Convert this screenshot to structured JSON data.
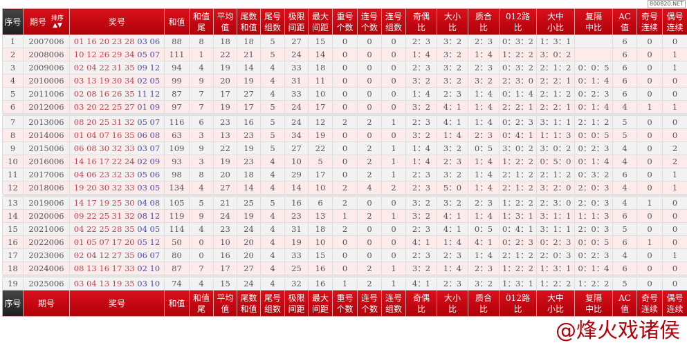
{
  "header": {
    "seq": "序号",
    "issue": "期号",
    "sort": "排序",
    "numbers": "奖号",
    "cols": [
      "和值",
      "和值尾",
      "平均值",
      "尾数和值",
      "尾号组数",
      "极限间距",
      "最大间距",
      "重号个数",
      "连号个数",
      "连号组数",
      "奇偶比",
      "大小比",
      "质合比",
      "012路比",
      "大中小比",
      "复隔中比",
      "AC值",
      "奇号连续",
      "偶号连续"
    ]
  },
  "badge": "800820.NET",
  "watermark": "@烽火戏诸侯",
  "colors": {
    "header": "#c8000a",
    "red_ball": "#c04650",
    "blue_ball": "#4a4aa8"
  },
  "groups": [
    6,
    6,
    6,
    1
  ],
  "rows": [
    [
      "1",
      "2007006",
      "01 16 20 23 28",
      "03 06",
      "88",
      "8",
      "18",
      "18",
      "5",
      "27",
      "15",
      "0",
      "0",
      "0",
      "2：3",
      "3：2",
      "2：3",
      "0：3：2",
      "1：3：1",
      "",
      "6",
      "0",
      "0"
    ],
    [
      "2",
      "2008006",
      "10 12 26 29 34",
      "05 07",
      "111",
      "1",
      "22",
      "21",
      "5",
      "24",
      "14",
      "0",
      "0",
      "0",
      "1：4",
      "3：2",
      "1：4",
      "1：2：2",
      "3：0：2",
      "",
      "6",
      "0",
      "1"
    ],
    [
      "3",
      "2009006",
      "02 04 22 31 35",
      "09 12",
      "94",
      "4",
      "19",
      "14",
      "4",
      "33",
      "18",
      "0",
      "0",
      "0",
      "2：3",
      "3：2",
      "2：3",
      "0：3：2",
      "2：1：2",
      "0：0：5",
      "6",
      "0",
      "1"
    ],
    [
      "4",
      "2010006",
      "03 13 19 30 34",
      "02 05",
      "99",
      "9",
      "20",
      "19",
      "4",
      "31",
      "11",
      "0",
      "0",
      "0",
      "3：2",
      "3：2",
      "3：2",
      "2：3：0",
      "2：2：1",
      "0：1：4",
      "6",
      "0",
      "0"
    ],
    [
      "5",
      "2011006",
      "02 08 16 26 35",
      "11 12",
      "87",
      "7",
      "17",
      "27",
      "4",
      "33",
      "10",
      "0",
      "0",
      "0",
      "1：4",
      "2：3",
      "1：4",
      "0：1：4",
      "2：1：2",
      "0：2：3",
      "6",
      "0",
      "0"
    ],
    [
      "6",
      "2012006",
      "03 20 22 25 27",
      "01 09",
      "97",
      "7",
      "19",
      "17",
      "5",
      "24",
      "17",
      "0",
      "0",
      "0",
      "3：2",
      "4：1",
      "1：4",
      "2：2：1",
      "2：2：1",
      "0：1：4",
      "4",
      "1",
      "1"
    ],
    [
      "7",
      "2013006",
      "08 20 25 31 32",
      "05 07",
      "116",
      "6",
      "23",
      "16",
      "5",
      "24",
      "12",
      "2",
      "2",
      "1",
      "2：3",
      "4：1",
      "1：4",
      "0：2：3",
      "3：1：1",
      "2：1：2",
      "5",
      "0",
      "0"
    ],
    [
      "8",
      "2014006",
      "01 04 07 16 35",
      "06 08",
      "63",
      "3",
      "13",
      "23",
      "5",
      "34",
      "19",
      "0",
      "0",
      "0",
      "3：2",
      "1：4",
      "2：3",
      "0：4：1",
      "1：1：3",
      "0：0：5",
      "5",
      "0",
      "0"
    ],
    [
      "9",
      "2015006",
      "06 08 30 32 33",
      "03 07",
      "109",
      "9",
      "22",
      "19",
      "5",
      "27",
      "22",
      "0",
      "2",
      "1",
      "1：4",
      "3：2",
      "0：5",
      "3：0：2",
      "3：0：2",
      "0：2：3",
      "4",
      "0",
      "2"
    ],
    [
      "10",
      "2016006",
      "14 16 17 22 24",
      "02 09",
      "93",
      "3",
      "19",
      "23",
      "4",
      "10",
      "5",
      "0",
      "2",
      "1",
      "1：4",
      "2：3",
      "1：4",
      "1：2：2",
      "0：5：0",
      "0：1：4",
      "4",
      "0",
      "2"
    ],
    [
      "11",
      "2017006",
      "04 06 23 32 33",
      "05 06",
      "98",
      "8",
      "20",
      "18",
      "4",
      "29",
      "17",
      "0",
      "2",
      "1",
      "2：3",
      "3：2",
      "1：4",
      "2：1：2",
      "2：1：2",
      "0：3：2",
      "6",
      "0",
      "1"
    ],
    [
      "12",
      "2018006",
      "19 20 30 32 33",
      "03 05",
      "134",
      "4",
      "27",
      "14",
      "4",
      "14",
      "10",
      "2",
      "4",
      "2",
      "2：3",
      "5：0",
      "1：4",
      "2：1：2",
      "3：2：0",
      "2：0：3",
      "4",
      "0",
      "1"
    ],
    [
      "13",
      "2019006",
      "14 17 19 25 30",
      "04 08",
      "105",
      "5",
      "21",
      "25",
      "5",
      "16",
      "6",
      "2",
      "0",
      "0",
      "3：2",
      "3：2",
      "2：3",
      "1：2：2",
      "2：3：0",
      "2：0：3",
      "4",
      "1",
      "0"
    ],
    [
      "14",
      "2020006",
      "09 22 25 31 32",
      "08 12",
      "119",
      "9",
      "24",
      "19",
      "4",
      "23",
      "13",
      "1",
      "2",
      "1",
      "3：2",
      "4：1",
      "1：4",
      "1：3：1",
      "3：1：1",
      "1：1：3",
      "6",
      "0",
      "0"
    ],
    [
      "15",
      "2021006",
      "04 22 25 28 35",
      "04 05",
      "114",
      "4",
      "23",
      "24",
      "4",
      "31",
      "18",
      "2",
      "0",
      "0",
      "2：3",
      "4：1",
      "0：5",
      "0：4：1",
      "3：1：1",
      "2：0：3",
      "5",
      "0",
      "0"
    ],
    [
      "16",
      "2022006",
      "01 05 07 17 20",
      "05 12",
      "50",
      "0",
      "10",
      "20",
      "4",
      "19",
      "10",
      "0",
      "0",
      "0",
      "4：1",
      "1：4",
      "4：1",
      "0：2：3",
      "0：2：3",
      "0：0：5",
      "6",
      "1",
      "0"
    ],
    [
      "17",
      "2023006",
      "02 04 12 27 35",
      "06 07",
      "80",
      "0",
      "16",
      "20",
      "4",
      "33",
      "15",
      "0",
      "0",
      "0",
      "2：3",
      "2：3",
      "1：4",
      "2：1：2",
      "2：0：3",
      "0：2：3",
      "4",
      "0",
      "1"
    ],
    [
      "18",
      "2024006",
      "08 13 16 17 33",
      "02 10",
      "87",
      "7",
      "17",
      "27",
      "4",
      "25",
      "16",
      "0",
      "2",
      "1",
      "3：2",
      "1：4",
      "2：3",
      "1：2：2",
      "1：3：1",
      "0：1：4",
      "6",
      "0",
      "0"
    ],
    [
      "19",
      "2025006",
      "03 04 13 19 35",
      "03 10",
      "74",
      "4",
      "15",
      "24",
      "4",
      "32",
      "16",
      "1",
      "2",
      "1",
      "4：1",
      "2：3",
      "3：2",
      "1：3：1",
      "1：2：2",
      "1：2：2",
      "5",
      "0",
      "0"
    ]
  ]
}
